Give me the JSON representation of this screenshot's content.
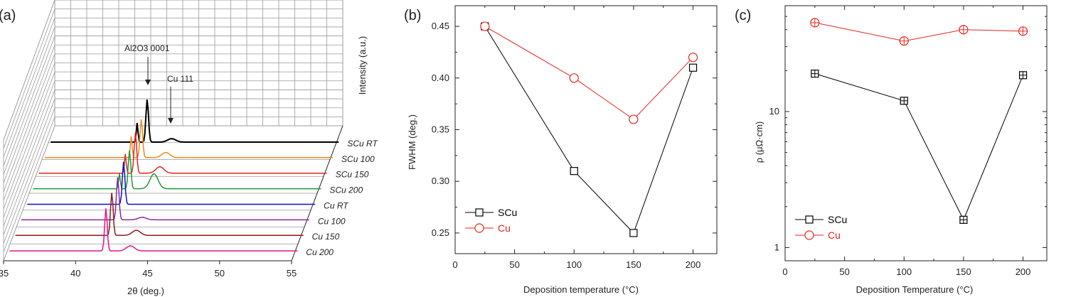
{
  "panels": {
    "a": {
      "label": "(a)"
    },
    "b": {
      "label": "(b)"
    },
    "c": {
      "label": "(c)"
    }
  },
  "colors": {
    "SCu_RT": "#000000",
    "SCu_100": "#f08a1c",
    "SCu_150": "#e5261f",
    "SCu_200": "#1e9a2e",
    "Cu_RT": "#1010c8",
    "Cu_100": "#8a2a9a",
    "Cu_150": "#8b1a1a",
    "Cu_200": "#e0168a",
    "scu_line": "#000000",
    "cu_line": "#e5261f"
  },
  "chart_data": [
    {
      "type": "line",
      "panel": "a",
      "title": "",
      "xlabel": "2θ (deg.)",
      "ylabel": "Intensity (a.u.)",
      "xlim": [
        35,
        55
      ],
      "xticks": [
        35,
        40,
        45,
        50,
        55
      ],
      "annotations": [
        "Al2O3 0001",
        "Cu 111"
      ],
      "series": [
        {
          "name": "SCu RT",
          "peaks": [
            {
              "x": 41.7,
              "h": 1.0
            },
            {
              "x": 43.4,
              "h": 0.08
            }
          ],
          "substrate_peak_h": 0.45
        },
        {
          "name": "SCu 100",
          "peaks": [
            {
              "x": 41.7,
              "h": 0.9
            },
            {
              "x": 43.4,
              "h": 0.12
            }
          ],
          "substrate_peak_h": 0.5
        },
        {
          "name": "SCu 150",
          "peaks": [
            {
              "x": 41.7,
              "h": 0.95
            },
            {
              "x": 43.4,
              "h": 0.15
            }
          ],
          "substrate_peak_h": 0.45
        },
        {
          "name": "SCu 200",
          "peaks": [
            {
              "x": 41.7,
              "h": 0.9
            },
            {
              "x": 43.4,
              "h": 0.35
            }
          ],
          "substrate_peak_h": 0.35
        },
        {
          "name": "Cu RT",
          "peaks": [
            {
              "x": 41.7,
              "h": 1.0
            },
            {
              "x": 43.4,
              "h": 0.0
            }
          ],
          "substrate_peak_h": 0.0
        },
        {
          "name": "Cu 100",
          "peaks": [
            {
              "x": 41.7,
              "h": 1.0
            },
            {
              "x": 43.4,
              "h": 0.06
            }
          ],
          "substrate_peak_h": 0.0
        },
        {
          "name": "Cu 150",
          "peaks": [
            {
              "x": 41.7,
              "h": 1.0
            },
            {
              "x": 43.4,
              "h": 0.12
            }
          ],
          "substrate_peak_h": 0.0
        },
        {
          "name": "Cu 200",
          "peaks": [
            {
              "x": 41.7,
              "h": 1.0
            },
            {
              "x": 43.4,
              "h": 0.12
            }
          ],
          "substrate_peak_h": 0.0
        }
      ]
    },
    {
      "type": "line",
      "panel": "b",
      "title": "",
      "xlabel": "Deposition temperature (°C)",
      "ylabel": "FWHM (deg.)",
      "xlim": [
        0,
        220
      ],
      "ylim": [
        0.23,
        0.47
      ],
      "xticks": [
        0,
        50,
        100,
        150,
        200
      ],
      "yticks": [
        0.25,
        0.3,
        0.35,
        0.4,
        0.45
      ],
      "legend": "bottom-left",
      "series": [
        {
          "name": "SCu",
          "marker": "square",
          "x": [
            25,
            100,
            150,
            200
          ],
          "y": [
            0.45,
            0.31,
            0.25,
            0.41
          ]
        },
        {
          "name": "Cu",
          "marker": "circle",
          "x": [
            25,
            100,
            150,
            200
          ],
          "y": [
            0.45,
            0.4,
            0.36,
            0.42
          ]
        }
      ]
    },
    {
      "type": "line",
      "panel": "c",
      "title": "",
      "xlabel": "Deposition Temperature (°C)",
      "ylabel": "ρ (μΩ·cm)",
      "yscale": "log",
      "xlim": [
        0,
        220
      ],
      "ylim": [
        0.8,
        60
      ],
      "xticks": [
        0,
        50,
        100,
        150,
        200
      ],
      "yticks": [
        1,
        10
      ],
      "legend": "bottom-left",
      "series": [
        {
          "name": "SCu",
          "marker": "square",
          "x": [
            25,
            100,
            150,
            200
          ],
          "y": [
            19,
            12,
            1.6,
            18.5
          ]
        },
        {
          "name": "Cu",
          "marker": "circle",
          "x": [
            25,
            100,
            150,
            200
          ],
          "y": [
            45,
            33,
            40,
            39
          ]
        }
      ]
    }
  ]
}
